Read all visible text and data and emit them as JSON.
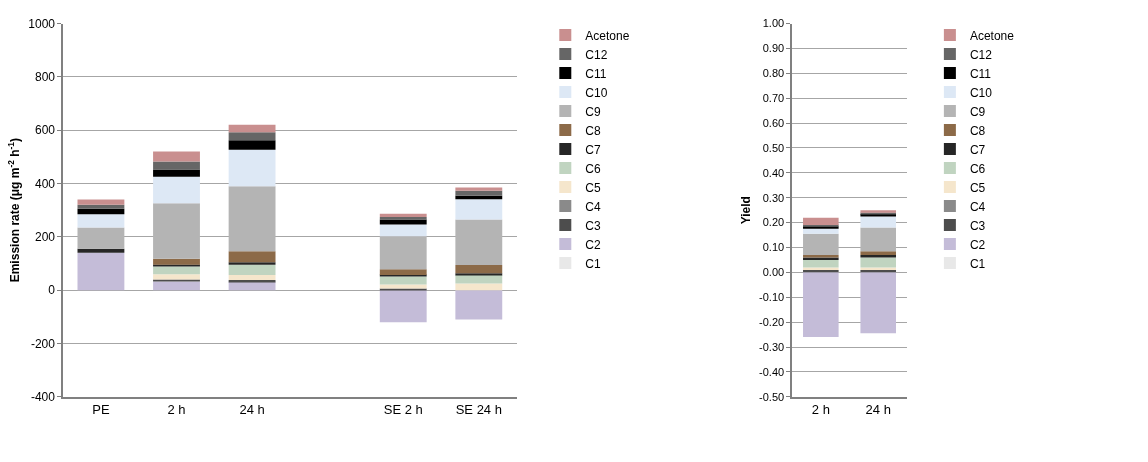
{
  "chart_data": [
    {
      "type": "bar",
      "stacked": true,
      "ylabel": "Emission rate (μg m$^{-2}$ h$^{-1}$)",
      "categories": [
        "PE",
        "2 h",
        "24 h",
        null,
        "SE 2 h",
        "SE 24 h"
      ],
      "ylim": [
        -400,
        1000
      ],
      "yticks": [
        -400,
        -200,
        0,
        200,
        400,
        600,
        800,
        1000
      ],
      "grid": "y",
      "legend": "right",
      "series": [
        {
          "name": "C1",
          "color": "#e8e8e8",
          "values": [
            0,
            0,
            0,
            null,
            0,
            0
          ]
        },
        {
          "name": "C2",
          "color": "#c4bcd8",
          "values": [
            140,
            32,
            32,
            null,
            -120,
            -110
          ]
        },
        {
          "name": "C3",
          "color": "#4d4d4d",
          "values": [
            0,
            8,
            6,
            null,
            6,
            0
          ]
        },
        {
          "name": "C4",
          "color": "#8a8a8a",
          "values": [
            0,
            0,
            0,
            null,
            0,
            0
          ]
        },
        {
          "name": "C5",
          "color": "#f5e6cc",
          "values": [
            0,
            20,
            19,
            null,
            15,
            25
          ]
        },
        {
          "name": "C6",
          "color": "#c0d4c0",
          "values": [
            0,
            29,
            38,
            null,
            30,
            32
          ]
        },
        {
          "name": "C7",
          "color": "#262626",
          "values": [
            15,
            6,
            10,
            null,
            6,
            6
          ]
        },
        {
          "name": "C8",
          "color": "#8c6a48",
          "values": [
            0,
            23,
            41,
            null,
            21,
            31
          ]
        },
        {
          "name": "C9",
          "color": "#b4b4b4",
          "values": [
            80,
            208,
            244,
            null,
            124,
            171
          ]
        },
        {
          "name": "C10",
          "color": "#dde8f5",
          "values": [
            50,
            99,
            137,
            null,
            44,
            76
          ]
        },
        {
          "name": "C11",
          "color": "#000000",
          "values": [
            20,
            28,
            35,
            null,
            19,
            13
          ]
        },
        {
          "name": "C12",
          "color": "#666666",
          "values": [
            15,
            30,
            30,
            null,
            9,
            19
          ]
        },
        {
          "name": "Acetone",
          "color": "#c98f8f",
          "values": [
            20,
            37,
            28,
            null,
            13,
            12
          ]
        }
      ]
    },
    {
      "type": "bar",
      "stacked": true,
      "ylabel": "Yield",
      "categories": [
        "2 h",
        "24 h"
      ],
      "ylim": [
        -0.5,
        1.0
      ],
      "yticks": [
        {
          "value": -0.5,
          "label": "-0.50"
        },
        {
          "value": -0.4,
          "label": "-0.40"
        },
        {
          "value": -0.3,
          "label": "-0.30"
        },
        {
          "value": -0.2,
          "label": "-0.20"
        },
        {
          "value": -0.1,
          "label": "-0.10"
        },
        {
          "value": 0,
          "label": "0.00"
        },
        {
          "value": 0.1,
          "label": "0.10"
        },
        {
          "value": 0.2,
          "label": "0.20"
        },
        {
          "value": 0.3,
          "label": "0.30"
        },
        {
          "value": 0.4,
          "label": "0.40"
        },
        {
          "value": 0.5,
          "label": "0.50"
        },
        {
          "value": 0.6,
          "label": "0.60"
        },
        {
          "value": 0.7,
          "label": "0.70"
        },
        {
          "value": 0.8,
          "label": "0.80"
        },
        {
          "value": 0.9,
          "label": "0.90"
        },
        {
          "value": 1.0,
          "label": "1.00"
        }
      ],
      "grid": "y",
      "legend": "right",
      "series": [
        {
          "name": "C1",
          "color": "#e8e8e8",
          "values": [
            0,
            0
          ]
        },
        {
          "name": "C2",
          "color": "#c4bcd8",
          "values": [
            -0.26,
            -0.245
          ]
        },
        {
          "name": "C3",
          "color": "#4d4d4d",
          "values": [
            0.01,
            0.01
          ]
        },
        {
          "name": "C4",
          "color": "#8a8a8a",
          "values": [
            0,
            0
          ]
        },
        {
          "name": "C5",
          "color": "#f5e6cc",
          "values": [
            0.01,
            0.01
          ]
        },
        {
          "name": "C6",
          "color": "#c0d4c0",
          "values": [
            0.03,
            0.04
          ]
        },
        {
          "name": "C7",
          "color": "#262626",
          "values": [
            0.01,
            0.01
          ]
        },
        {
          "name": "C8",
          "color": "#8c6a48",
          "values": [
            0.01,
            0.015
          ]
        },
        {
          "name": "C9",
          "color": "#b4b4b4",
          "values": [
            0.085,
            0.095
          ]
        },
        {
          "name": "C10",
          "color": "#dde8f5",
          "values": [
            0.02,
            0.045
          ]
        },
        {
          "name": "C11",
          "color": "#000000",
          "values": [
            0.01,
            0.01
          ]
        },
        {
          "name": "C12",
          "color": "#666666",
          "values": [
            0.005,
            0.005
          ]
        },
        {
          "name": "Acetone",
          "color": "#c98f8f",
          "values": [
            0.03,
            0.01
          ]
        }
      ]
    }
  ]
}
